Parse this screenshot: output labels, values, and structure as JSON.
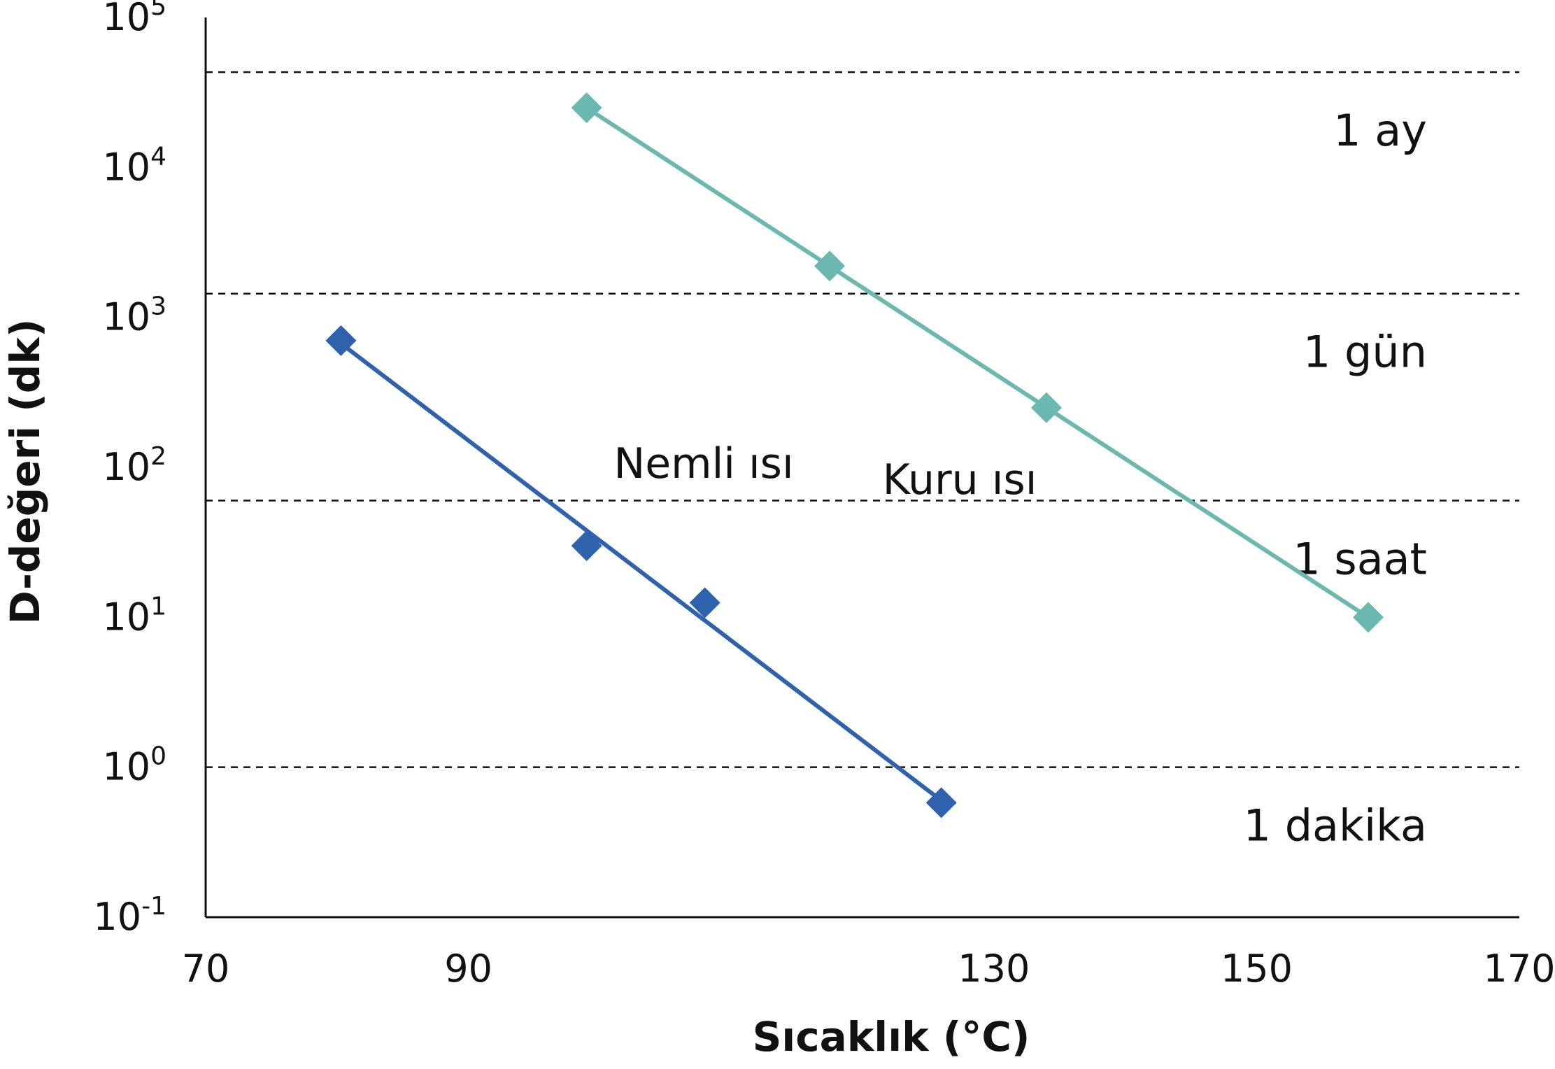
{
  "chart_data": {
    "type": "scatter",
    "xlabel": "Sıcaklık (°C)",
    "ylabel": "D-değeri (dk)",
    "x_ticks": [
      70,
      90,
      130,
      150,
      170
    ],
    "y_ticks": [
      {
        "value": 0.1,
        "base": "10",
        "exp": "-1"
      },
      {
        "value": 1,
        "base": "10",
        "exp": "0"
      },
      {
        "value": 10,
        "base": "10",
        "exp": "1"
      },
      {
        "value": 100,
        "base": "10",
        "exp": "2"
      },
      {
        "value": 1000,
        "base": "10",
        "exp": "3"
      },
      {
        "value": 10000,
        "base": "10",
        "exp": "4"
      },
      {
        "value": 100000,
        "base": "10",
        "exp": "5"
      }
    ],
    "xlim": [
      70,
      170
    ],
    "ylim": [
      0.1,
      100000
    ],
    "y_scale": "log",
    "grid": false,
    "reference_lines": [
      {
        "label": "1 ay",
        "value": 43200
      },
      {
        "label": "1 gün",
        "value": 1440
      },
      {
        "label": "1 saat",
        "value": 60
      },
      {
        "label": "1 dakika",
        "value": 1
      }
    ],
    "series": [
      {
        "name": "Nemli ısı",
        "color": "#2e62ad",
        "marker": "diamond",
        "points": [
          {
            "x": 80.3,
            "y": 700
          },
          {
            "x": 99,
            "y": 30
          },
          {
            "x": 108,
            "y": 12.5
          },
          {
            "x": 126,
            "y": 0.58
          }
        ],
        "trendline": [
          {
            "x": 80.3,
            "y": 670
          },
          {
            "x": 126,
            "y": 0.6
          }
        ]
      },
      {
        "name": "Kuru ısı",
        "color": "#6ab8b0",
        "marker": "diamond",
        "points": [
          {
            "x": 99,
            "y": 25000
          },
          {
            "x": 117.5,
            "y": 2200
          },
          {
            "x": 134,
            "y": 250
          },
          {
            "x": 158.5,
            "y": 10
          }
        ],
        "trendline": [
          {
            "x": 99,
            "y": 25000
          },
          {
            "x": 158.5,
            "y": 10
          }
        ]
      }
    ]
  }
}
